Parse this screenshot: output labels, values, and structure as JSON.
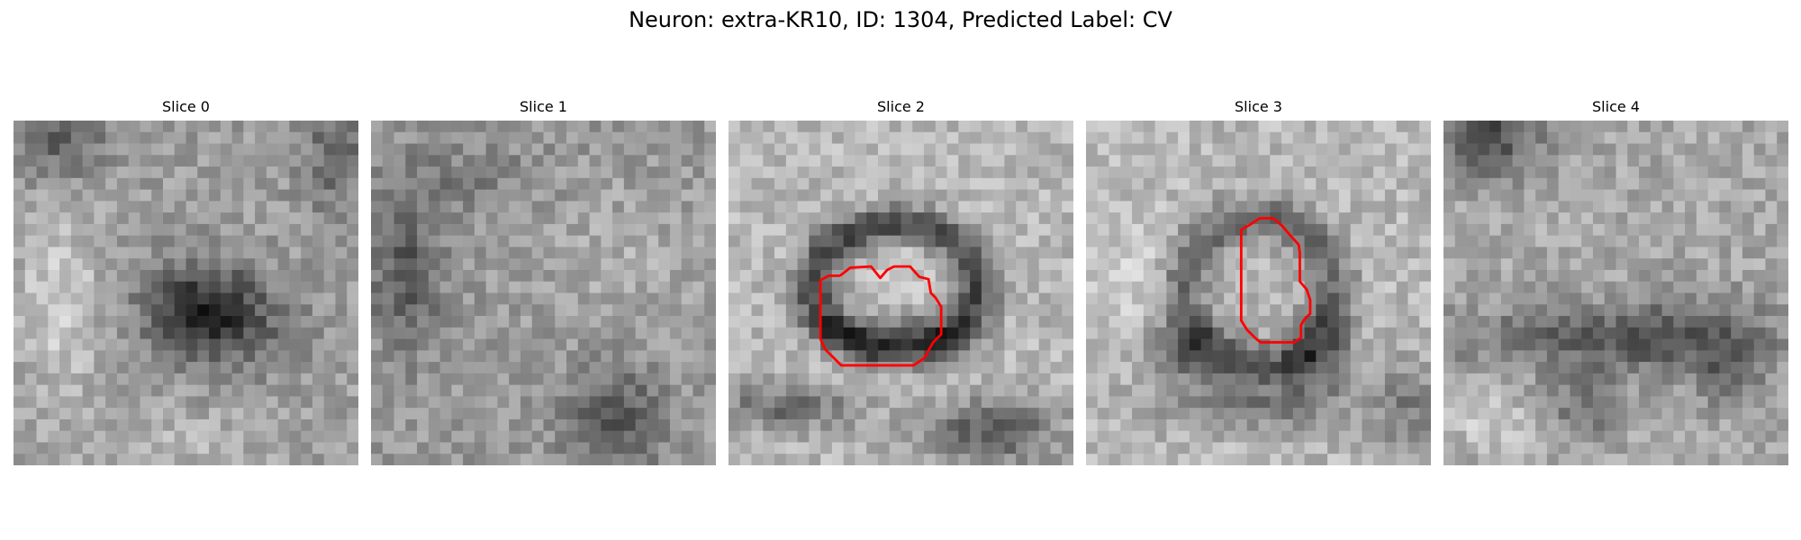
{
  "figure": {
    "title": "Neuron: extra-KR10, ID: 1304, Predicted Label: CV"
  },
  "panels": [
    {
      "title": "Slice 0",
      "has_contour": false
    },
    {
      "title": "Slice 1",
      "has_contour": false
    },
    {
      "title": "Slice 2",
      "has_contour": true
    },
    {
      "title": "Slice 3",
      "has_contour": true
    },
    {
      "title": "Slice 4",
      "has_contour": false
    }
  ],
  "colors": {
    "contour": "#ff0000",
    "background": "#ffffff"
  }
}
